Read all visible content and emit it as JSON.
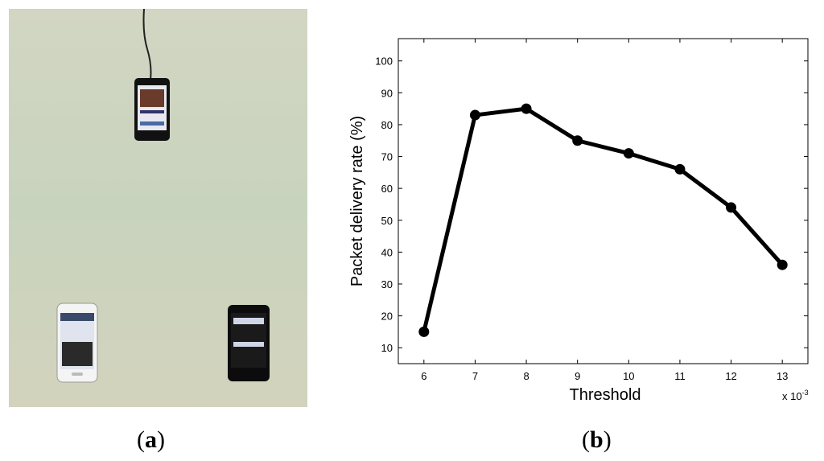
{
  "panels": {
    "a": {
      "label": "a"
    },
    "b": {
      "label": "b"
    }
  },
  "photo": {
    "description_icons": [
      "phone-charging-icon",
      "phone-keyboard-icon",
      "phone-dark-screen-icon"
    ]
  },
  "colors": {
    "background": "#ffffff",
    "wall": "#c9d2bb",
    "line": "#000000"
  },
  "chart_data": {
    "type": "line",
    "title": "",
    "xlabel": "Threshold",
    "ylabel": "Packet delivery rate  (%)",
    "x_multiplier": "x 10",
    "x_multiplier_exp": "-3",
    "x": [
      6,
      7,
      8,
      9,
      10,
      11,
      12,
      13
    ],
    "xlim": [
      5.5,
      13.5
    ],
    "ylim": [
      5,
      107
    ],
    "xticks": [
      "6",
      "7",
      "8",
      "9",
      "10",
      "11",
      "12",
      "13"
    ],
    "yticks": [
      "10",
      "20",
      "30",
      "40",
      "50",
      "60",
      "70",
      "80",
      "90",
      "100"
    ],
    "series": [
      {
        "values": [
          15,
          83,
          85,
          75,
          71,
          66,
          54,
          36
        ]
      }
    ],
    "grid": false
  }
}
